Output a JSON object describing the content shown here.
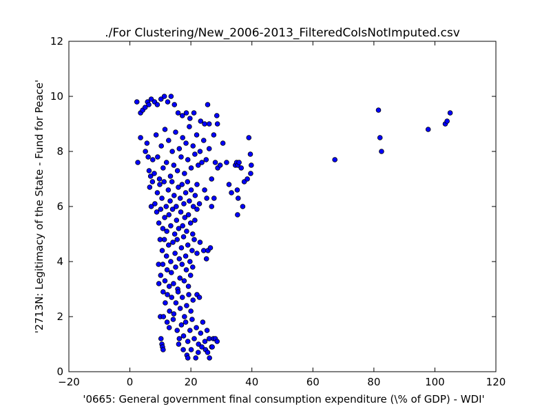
{
  "chart_data": {
    "type": "scatter",
    "title": "./For Clustering/New_2006-2013_FilteredColsNotImputed.csv",
    "xlabel": "'0665: General government final consumption expenditure  (\\% of GDP) - WDI'",
    "ylabel": "'2713N: Legitimacy of the State - Fund for Peace'",
    "xlim": [
      -20,
      120
    ],
    "ylim": [
      0,
      12
    ],
    "xticks": [
      -20,
      0,
      20,
      40,
      60,
      80,
      100,
      120
    ],
    "yticks": [
      0,
      2,
      4,
      6,
      8,
      10,
      12
    ],
    "grid": false,
    "marker_color": "#0000ff",
    "series": [
      {
        "points": [
          [
            2.3,
            9.8
          ],
          [
            3.5,
            9.4
          ],
          [
            4.2,
            9.5
          ],
          [
            5.0,
            9.6
          ],
          [
            5.8,
            9.8
          ],
          [
            6.2,
            9.7
          ],
          [
            7.0,
            9.9
          ],
          [
            8.1,
            9.8
          ],
          [
            9.0,
            9.7
          ],
          [
            10.2,
            9.9
          ],
          [
            11.3,
            10.0
          ],
          [
            12.4,
            9.8
          ],
          [
            13.5,
            10.0
          ],
          [
            14.6,
            9.7
          ],
          [
            15.8,
            9.4
          ],
          [
            17.2,
            9.3
          ],
          [
            18.5,
            9.4
          ],
          [
            19.7,
            9.2
          ],
          [
            21.0,
            9.4
          ],
          [
            23.2,
            9.1
          ],
          [
            24.5,
            9.0
          ],
          [
            25.5,
            9.7
          ],
          [
            26.0,
            9.0
          ],
          [
            28.5,
            9.3
          ],
          [
            28.7,
            9.0
          ],
          [
            2.6,
            7.6
          ],
          [
            3.5,
            8.5
          ],
          [
            5.1,
            8.0
          ],
          [
            5.6,
            8.3
          ],
          [
            6.0,
            7.8
          ],
          [
            6.3,
            7.3
          ],
          [
            6.8,
            7.1
          ],
          [
            7.5,
            7.7
          ],
          [
            8.0,
            7.2
          ],
          [
            8.6,
            8.6
          ],
          [
            9.1,
            7.8
          ],
          [
            9.7,
            7.0
          ],
          [
            10.3,
            8.2
          ],
          [
            10.9,
            7.4
          ],
          [
            11.5,
            8.8
          ],
          [
            12.0,
            7.6
          ],
          [
            12.7,
            8.4
          ],
          [
            13.3,
            7.1
          ],
          [
            13.9,
            8.0
          ],
          [
            14.4,
            7.5
          ],
          [
            15.0,
            8.7
          ],
          [
            15.6,
            7.3
          ],
          [
            16.2,
            8.1
          ],
          [
            16.8,
            7.8
          ],
          [
            17.3,
            8.5
          ],
          [
            17.9,
            7.2
          ],
          [
            18.4,
            8.3
          ],
          [
            19.0,
            7.7
          ],
          [
            19.5,
            8.9
          ],
          [
            20.1,
            7.4
          ],
          [
            20.7,
            8.2
          ],
          [
            21.3,
            7.9
          ],
          [
            21.9,
            8.6
          ],
          [
            22.4,
            7.5
          ],
          [
            23.0,
            8.0
          ],
          [
            23.6,
            7.6
          ],
          [
            24.2,
            8.4
          ],
          [
            25.0,
            7.7
          ],
          [
            26.0,
            8.1
          ],
          [
            26.8,
            7.0
          ],
          [
            27.5,
            8.6
          ],
          [
            28.0,
            7.6
          ],
          [
            28.8,
            7.4
          ],
          [
            29.6,
            7.5
          ],
          [
            30.5,
            8.3
          ],
          [
            31.7,
            7.6
          ],
          [
            32.5,
            6.8
          ],
          [
            33.3,
            6.5
          ],
          [
            34.6,
            7.5
          ],
          [
            35.0,
            7.6
          ],
          [
            35.4,
            7.5
          ],
          [
            35.8,
            7.6
          ],
          [
            35.2,
            6.6
          ],
          [
            35.5,
            6.3
          ],
          [
            35.3,
            5.7
          ],
          [
            36.5,
            7.4
          ],
          [
            37.0,
            6.0
          ],
          [
            37.5,
            6.9
          ],
          [
            38.5,
            7.0
          ],
          [
            39.0,
            8.5
          ],
          [
            39.5,
            7.9
          ],
          [
            39.8,
            7.5
          ],
          [
            39.6,
            7.2
          ],
          [
            6.5,
            6.7
          ],
          [
            7.4,
            6.9
          ],
          [
            8.2,
            6.1
          ],
          [
            9.0,
            6.5
          ],
          [
            9.8,
            6.8
          ],
          [
            10.5,
            6.3
          ],
          [
            11.2,
            6.9
          ],
          [
            11.9,
            6.0
          ],
          [
            12.6,
            6.6
          ],
          [
            13.2,
            6.2
          ],
          [
            13.8,
            6.9
          ],
          [
            14.5,
            6.4
          ],
          [
            15.2,
            6.0
          ],
          [
            15.9,
            6.7
          ],
          [
            16.5,
            6.3
          ],
          [
            17.1,
            6.8
          ],
          [
            17.7,
            6.1
          ],
          [
            18.3,
            6.5
          ],
          [
            18.9,
            6.9
          ],
          [
            19.5,
            6.2
          ],
          [
            20.1,
            6.6
          ],
          [
            20.8,
            6.0
          ],
          [
            21.4,
            6.4
          ],
          [
            22.0,
            6.8
          ],
          [
            22.8,
            6.1
          ],
          [
            24.5,
            6.6
          ],
          [
            25.2,
            6.3
          ],
          [
            26.8,
            6.0
          ],
          [
            27.6,
            6.3
          ],
          [
            7.0,
            6.0
          ],
          [
            8.8,
            5.8
          ],
          [
            9.5,
            5.4
          ],
          [
            10.1,
            5.9
          ],
          [
            10.8,
            5.2
          ],
          [
            11.4,
            5.6
          ],
          [
            12.1,
            5.1
          ],
          [
            12.8,
            5.7
          ],
          [
            13.4,
            5.3
          ],
          [
            14.0,
            5.9
          ],
          [
            14.7,
            5.0
          ],
          [
            15.3,
            5.5
          ],
          [
            16.0,
            5.2
          ],
          [
            16.7,
            5.8
          ],
          [
            17.3,
            5.3
          ],
          [
            18.0,
            5.6
          ],
          [
            18.6,
            5.1
          ],
          [
            19.2,
            5.7
          ],
          [
            19.9,
            5.4
          ],
          [
            20.6,
            5.0
          ],
          [
            21.3,
            5.5
          ],
          [
            22.0,
            5.9
          ],
          [
            9.9,
            4.8
          ],
          [
            10.6,
            4.4
          ],
          [
            11.3,
            4.8
          ],
          [
            12.0,
            4.2
          ],
          [
            12.7,
            4.6
          ],
          [
            13.4,
            4.0
          ],
          [
            14.1,
            4.7
          ],
          [
            14.8,
            4.3
          ],
          [
            15.5,
            4.8
          ],
          [
            16.2,
            4.1
          ],
          [
            16.9,
            4.5
          ],
          [
            17.6,
            4.9
          ],
          [
            18.3,
            4.2
          ],
          [
            19.0,
            4.6
          ],
          [
            19.7,
            4.0
          ],
          [
            20.4,
            4.4
          ],
          [
            21.1,
            4.8
          ],
          [
            22.0,
            4.3
          ],
          [
            23.0,
            4.7
          ],
          [
            24.2,
            4.4
          ],
          [
            25.1,
            4.1
          ],
          [
            25.6,
            4.4
          ],
          [
            26.4,
            4.5
          ],
          [
            9.4,
            3.9
          ],
          [
            10.1,
            3.5
          ],
          [
            10.8,
            3.9
          ],
          [
            11.5,
            3.3
          ],
          [
            12.2,
            3.7
          ],
          [
            12.9,
            3.1
          ],
          [
            13.6,
            3.6
          ],
          [
            14.3,
            3.2
          ],
          [
            15.0,
            3.8
          ],
          [
            15.7,
            3.0
          ],
          [
            16.4,
            3.4
          ],
          [
            17.1,
            3.9
          ],
          [
            17.8,
            3.3
          ],
          [
            18.5,
            3.7
          ],
          [
            19.2,
            3.1
          ],
          [
            19.9,
            3.5
          ],
          [
            20.6,
            3.8
          ],
          [
            9.5,
            3.2
          ],
          [
            10.9,
            2.9
          ],
          [
            11.6,
            2.5
          ],
          [
            12.3,
            2.8
          ],
          [
            13.0,
            2.2
          ],
          [
            13.7,
            2.7
          ],
          [
            14.4,
            2.1
          ],
          [
            15.1,
            2.5
          ],
          [
            15.8,
            2.9
          ],
          [
            16.5,
            2.3
          ],
          [
            17.2,
            2.7
          ],
          [
            17.9,
            2.0
          ],
          [
            18.6,
            2.4
          ],
          [
            19.3,
            2.8
          ],
          [
            20.0,
            2.2
          ],
          [
            20.7,
            2.6
          ],
          [
            22.0,
            2.8
          ],
          [
            22.8,
            2.7
          ],
          [
            10.0,
            2.0
          ],
          [
            11.0,
            2.0
          ],
          [
            12.2,
            1.8
          ],
          [
            12.9,
            1.6
          ],
          [
            14.2,
            1.9
          ],
          [
            15.5,
            1.5
          ],
          [
            16.2,
            1.2
          ],
          [
            16.9,
            1.7
          ],
          [
            17.6,
            1.3
          ],
          [
            18.3,
            1.8
          ],
          [
            19.0,
            1.1
          ],
          [
            19.7,
            1.5
          ],
          [
            20.4,
            1.9
          ],
          [
            21.1,
            1.2
          ],
          [
            21.8,
            1.6
          ],
          [
            22.5,
            1.0
          ],
          [
            23.2,
            1.4
          ],
          [
            23.9,
            1.8
          ],
          [
            24.6,
            1.1
          ],
          [
            25.3,
            1.5
          ],
          [
            26.0,
            1.2
          ],
          [
            26.8,
            0.9
          ],
          [
            27.4,
            1.2
          ],
          [
            28.0,
            1.2
          ],
          [
            28.6,
            1.1
          ],
          [
            16.0,
            1.0
          ],
          [
            17.5,
            0.8
          ],
          [
            18.7,
            0.6
          ],
          [
            19.0,
            0.5
          ],
          [
            20.1,
            0.8
          ],
          [
            21.6,
            0.5
          ],
          [
            22.4,
            0.7
          ],
          [
            23.6,
            0.9
          ],
          [
            24.8,
            0.8
          ],
          [
            25.5,
            0.7
          ],
          [
            26.1,
            0.5
          ],
          [
            27.0,
            0.9
          ],
          [
            10.2,
            1.2
          ],
          [
            10.5,
            1.0
          ],
          [
            10.7,
            0.9
          ],
          [
            10.9,
            0.8
          ],
          [
            67.2,
            7.7
          ],
          [
            81.5,
            9.5
          ],
          [
            82.0,
            8.5
          ],
          [
            82.5,
            8.0
          ],
          [
            97.8,
            8.8
          ],
          [
            103.4,
            9.0
          ],
          [
            104.0,
            9.1
          ],
          [
            105.0,
            9.4
          ]
        ]
      }
    ]
  }
}
